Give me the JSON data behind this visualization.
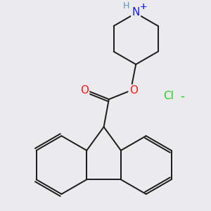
{
  "background_color": "#ebebed",
  "line_color": "#1a1a1a",
  "bond_width": 1.4,
  "N_color": "#1919ff",
  "O_color": "#ff1919",
  "Cl_color": "#22cc22",
  "H_color": "#5599aa",
  "figsize": [
    3.0,
    3.0
  ],
  "dpi": 100,
  "xlim": [
    -2.8,
    2.8
  ],
  "ylim": [
    -3.2,
    2.6
  ]
}
